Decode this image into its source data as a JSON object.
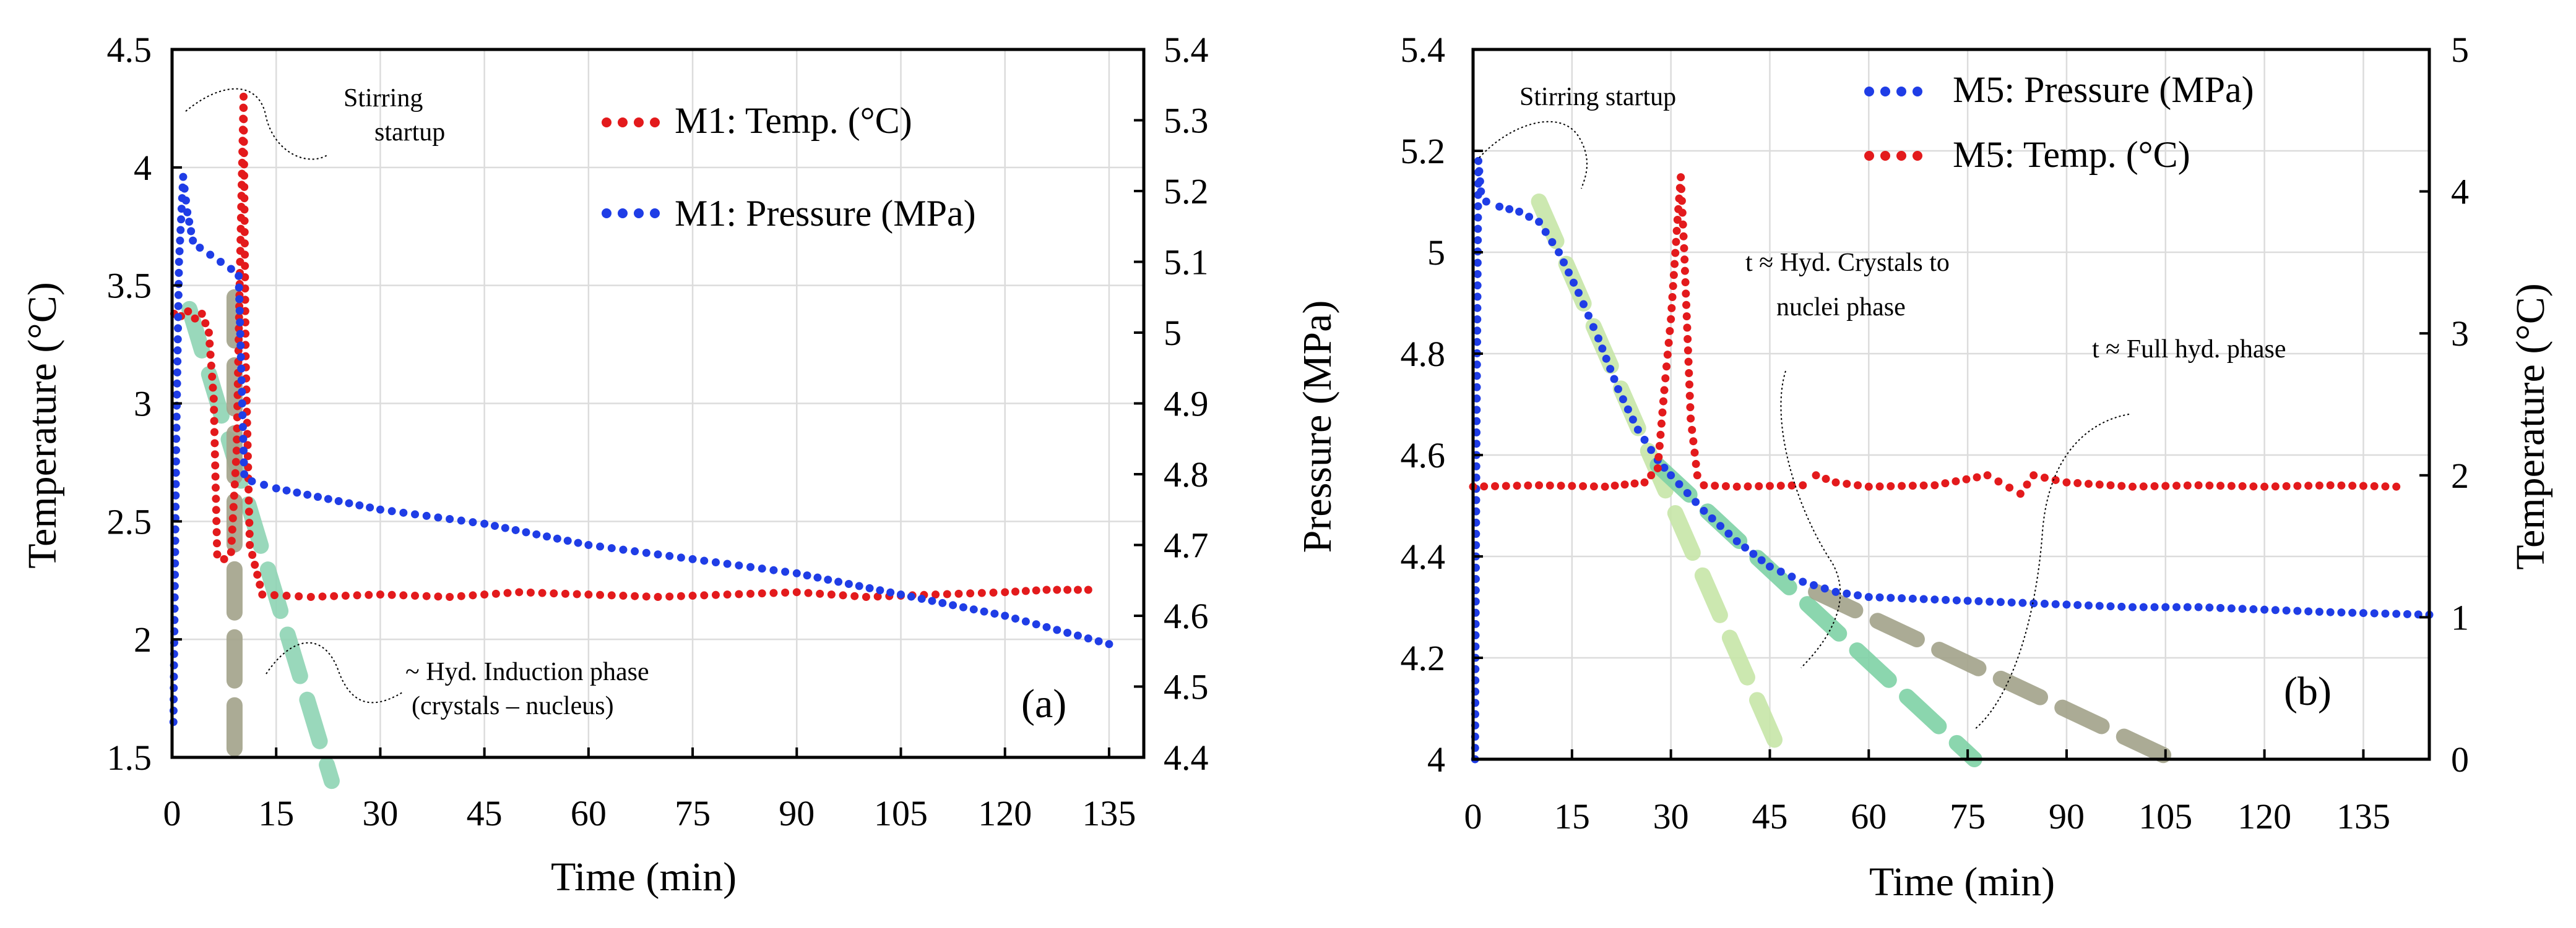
{
  "chart_data": [
    {
      "type": "scatter",
      "panel": "(a)",
      "xlabel": "Time (min)",
      "ylabel_left": "Temperature (°C)",
      "ylabel_right": "",
      "xlim": [
        0,
        140
      ],
      "ylim_left": [
        1.5,
        4.5
      ],
      "ylim_right": [
        4.4,
        5.4
      ],
      "xticks": [
        0,
        15,
        30,
        45,
        60,
        75,
        90,
        105,
        120,
        135
      ],
      "yticks_left": [
        "1.5",
        "2",
        "2.5",
        "3",
        "3.5",
        "4",
        "4.5"
      ],
      "yticks_right": [
        "4.4",
        "4.5",
        "4.6",
        "4.7",
        "4.8",
        "4.9",
        "5",
        "5.1",
        "5.2",
        "5.3",
        "5.4"
      ],
      "grid": true,
      "series": [
        {
          "name": "M1: Temp. (°C)",
          "axis": "left",
          "color": "#e31a1c",
          "x": [
            0.3,
            1.3,
            2.3,
            3.3,
            4.3,
            5.3,
            6.0,
            6.5,
            7.5,
            8.5,
            9.3,
            9.8,
            10.3,
            10.6,
            11.2,
            13,
            20,
            30,
            40,
            50,
            60,
            70,
            80,
            90,
            100,
            110,
            120,
            126,
            129,
            132
          ],
          "values": [
            3.38,
            3.37,
            3.39,
            3.36,
            3.38,
            3.3,
            3.02,
            2.36,
            2.34,
            2.37,
            2.8,
            3.6,
            4.3,
            3.2,
            2.4,
            2.19,
            2.18,
            2.19,
            2.18,
            2.2,
            2.19,
            2.18,
            2.19,
            2.2,
            2.18,
            2.19,
            2.2,
            2.21,
            2.21,
            2.21
          ]
        },
        {
          "name": "M1: Pressure (MPa)",
          "axis": "right",
          "color": "#1f3de6",
          "x": [
            0.2,
            0.6,
            1.0,
            1.6,
            2.2,
            3.0,
            4.0,
            5.5,
            7.0,
            8.5,
            9.6,
            10.1,
            10.4,
            11.5,
            15,
            30,
            45,
            60,
            75,
            90,
            105,
            120,
            135
          ],
          "values": [
            4.45,
            4.85,
            5.1,
            5.22,
            5.17,
            5.13,
            5.12,
            5.11,
            5.1,
            5.09,
            5.08,
            4.9,
            4.8,
            4.79,
            4.78,
            4.75,
            4.73,
            4.7,
            4.68,
            4.66,
            4.63,
            4.6,
            4.56
          ]
        }
      ],
      "trend_lines": [
        {
          "name": "green-dashed-trend",
          "color": "#8fd4b4",
          "axis": "left",
          "from": [
            2.5,
            3.4
          ],
          "to": [
            23,
            1.4
          ]
        },
        {
          "name": "olive-dashed-vertical",
          "color": "#a3a38a",
          "axis": "left",
          "from": [
            9.0,
            3.45
          ],
          "to": [
            9.0,
            1.5
          ]
        }
      ],
      "legend": [
        "M1: Temp. (°C)",
        "M1: Pressure (MPa)"
      ],
      "legend_position": "top-right",
      "annotations": [
        "Stirring",
        "startup",
        "~ Hyd. Induction phase",
        "(crystals – nucleus)"
      ]
    },
    {
      "type": "scatter",
      "panel": "(b)",
      "xlabel": "Time (min)",
      "ylabel_left": "Pressure (MPa)",
      "ylabel_right": "Temperature (°C)",
      "xlim": [
        0,
        145
      ],
      "ylim_left": [
        4,
        5.4
      ],
      "ylim_right": [
        0,
        5
      ],
      "xticks": [
        0,
        15,
        30,
        45,
        60,
        75,
        90,
        105,
        120,
        135
      ],
      "yticks_left": [
        "4",
        "4.2",
        "4.4",
        "4.6",
        "4.8",
        "5",
        "5.2",
        "5.4"
      ],
      "yticks_right": [
        "0",
        "1",
        "2",
        "3",
        "4",
        "5"
      ],
      "grid": true,
      "series": [
        {
          "name": "M5: Pressure (MPa)",
          "axis": "left",
          "color": "#1f3de6",
          "x": [
            0.3,
            0.5,
            0.8,
            1.2,
            2,
            4,
            7,
            10,
            13,
            16,
            19,
            22,
            25,
            28,
            30,
            35,
            40,
            45,
            50,
            55,
            60,
            70,
            80,
            90,
            100,
            110,
            120,
            130,
            145
          ],
          "values": [
            4.0,
            4.6,
            5.18,
            5.12,
            5.1,
            5.09,
            5.08,
            5.06,
            5.0,
            4.92,
            4.83,
            4.73,
            4.65,
            4.59,
            4.56,
            4.49,
            4.43,
            4.38,
            4.35,
            4.33,
            4.32,
            4.315,
            4.31,
            4.305,
            4.3,
            4.3,
            4.295,
            4.29,
            4.285
          ]
        },
        {
          "name": "M5: Temp. (°C)",
          "axis": "right",
          "color": "#e31a1c",
          "x": [
            0,
            10,
            20,
            26,
            28,
            29,
            30,
            31,
            31.5,
            32,
            33,
            34,
            35,
            40,
            50,
            52,
            55,
            60,
            70,
            78,
            83,
            85,
            90,
            100,
            110,
            120,
            130,
            140
          ],
          "values": [
            1.92,
            1.93,
            1.92,
            1.95,
            2.05,
            2.6,
            3.1,
            3.8,
            4.1,
            3.6,
            2.4,
            2.0,
            1.93,
            1.92,
            1.93,
            2.0,
            1.95,
            1.92,
            1.93,
            2.0,
            1.87,
            2.0,
            1.95,
            1.92,
            1.93,
            1.92,
            1.93,
            1.92
          ]
        }
      ],
      "trend_lines": [
        {
          "name": "light-green-dashed-trend",
          "color": "#c7e6a8",
          "axis": "left",
          "from": [
            10,
            5.1
          ],
          "to": [
            47,
            4.0
          ]
        },
        {
          "name": "teal-dashed-trend",
          "color": "#7fd2a6",
          "axis": "left",
          "from": [
            28,
            4.58
          ],
          "to": [
            76,
            4.0
          ]
        },
        {
          "name": "olive-dashed-trend",
          "color": "#a3a38a",
          "axis": "left",
          "from": [
            52,
            4.33
          ],
          "to": [
            106,
            4.0
          ]
        }
      ],
      "legend": [
        "M5: Pressure (MPa)",
        "M5: Temp. (°C)"
      ],
      "legend_position": "top-right",
      "annotations": [
        "Stirring startup",
        "t ≈ Hyd. Crystals to",
        "nuclei phase",
        "t ≈ Full hyd. phase"
      ]
    }
  ]
}
